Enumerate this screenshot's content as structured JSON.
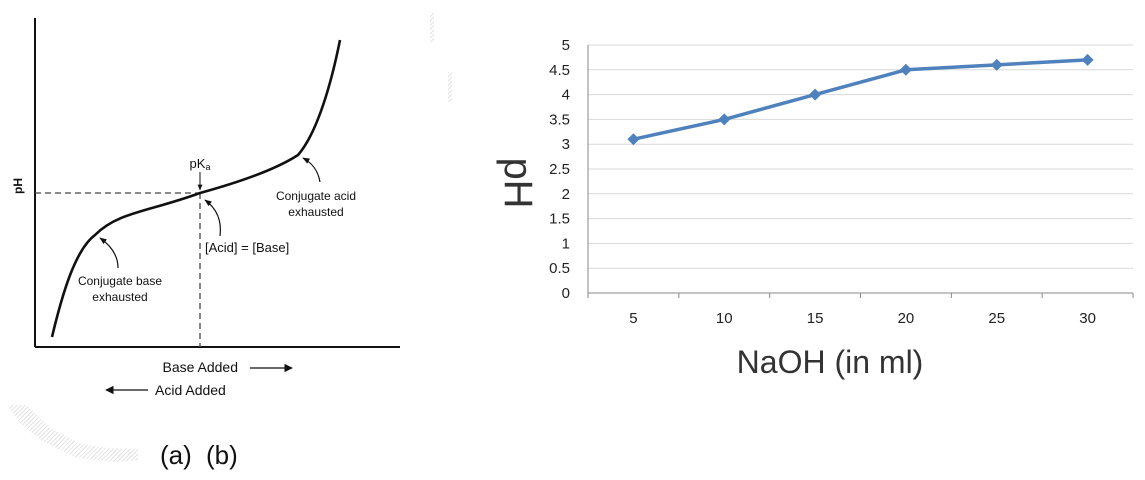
{
  "panel_labels": [
    "(a)",
    "(b)"
  ],
  "colors": {
    "schematic_curve": "#111111",
    "dashed_lines": "#444444",
    "series_line": "#4f81bd",
    "marker": "#4f81bd",
    "gridline": "#d9d9d9",
    "axis": "#888888",
    "watermark": "#e3e3e3"
  },
  "chart_data": [
    {
      "type": "line",
      "title": "",
      "xlabel_lines": [
        "Base Added",
        "Acid Added"
      ],
      "ylabel": "pH",
      "axis_arrows": {
        "base_added": "right",
        "acid_added": "left"
      },
      "ticks": {
        "x": [],
        "y": []
      },
      "curve": "sigmoidal titration curve, steep rise at both ends",
      "annotations": [
        {
          "text": "pKa",
          "points_to": "half-equivalence point"
        },
        {
          "text": "[Acid] = [Base]",
          "points_to": "half-equivalence point"
        },
        {
          "text_lines": [
            "Conjugate base",
            "exhausted"
          ],
          "points_to": "lower bend of curve"
        },
        {
          "text_lines": [
            "Conjugate acid",
            "exhausted"
          ],
          "points_to": "upper bend of curve"
        }
      ],
      "grid": false,
      "legend": "none"
    },
    {
      "type": "line",
      "title": "",
      "xlabel": "NaOH (in ml)",
      "ylabel": "pH",
      "categories": [
        5,
        10,
        15,
        20,
        25,
        30
      ],
      "category_labels": [
        "5",
        "10",
        "15",
        "20",
        "25",
        "30"
      ],
      "series": [
        {
          "values": [
            3.1,
            3.5,
            4.0,
            4.5,
            4.6,
            4.7
          ]
        }
      ],
      "ylim": [
        0,
        5
      ],
      "yticks": [
        0,
        0.5,
        1,
        1.5,
        2,
        2.5,
        3,
        3.5,
        4,
        4.5,
        5
      ],
      "ytick_labels": [
        "0",
        "0.5",
        "1",
        "1.5",
        "2",
        "2.5",
        "3",
        "3.5",
        "4",
        "4.5",
        "5"
      ],
      "marker": "diamond",
      "grid": true,
      "legend": "none"
    }
  ]
}
